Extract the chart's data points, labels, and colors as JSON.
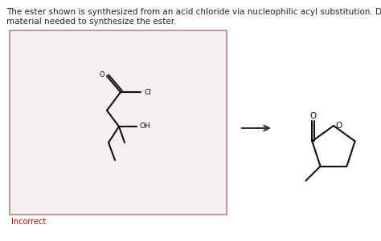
{
  "title_text1": "The ester shown is synthesized from an acid chloride via nucleophilic acyl substitution. Draw the neutral organic starting",
  "title_text2": "material needed to synthesize the ester.",
  "title_fontsize": 7.5,
  "title_color": "#222222",
  "background_color": "#ffffff",
  "box_bg": "#f5f0f0",
  "box_border": "#c08080",
  "incorrect_color": "#cc0000",
  "incorrect_text": "Incorrect",
  "arrow_color": "#333333",
  "line_width": 1.5,
  "line_color": "#111111"
}
